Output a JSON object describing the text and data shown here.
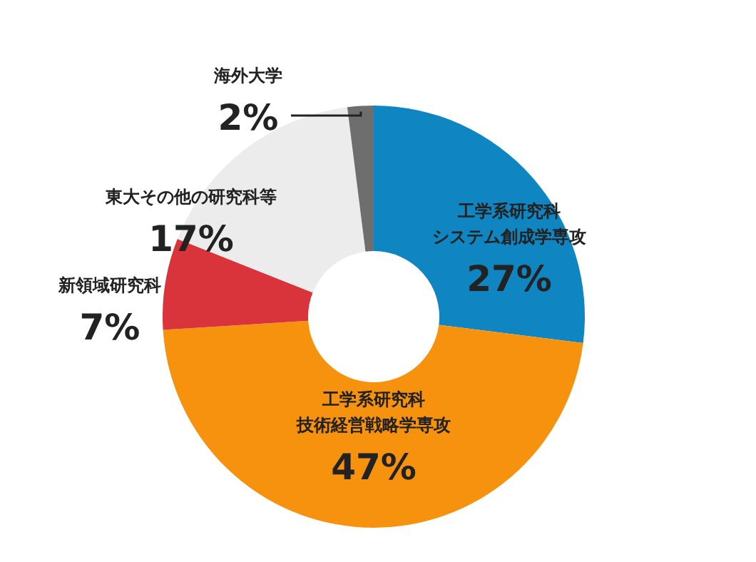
{
  "chart_data": {
    "type": "donut",
    "categories": [
      "工学系研究科システム創成学専攻",
      "工学系研究科技術経営戦略学専攻",
      "新領域研究科",
      "東大その他の研究科等",
      "海外大学"
    ],
    "values": [
      27,
      47,
      7,
      17,
      2
    ],
    "value_labels": [
      "27%",
      "47%",
      "7%",
      "17%",
      "2%"
    ],
    "colors": [
      "#0f86c2",
      "#f7920f",
      "#d9333b",
      "#ececec",
      "#6e6e6e"
    ]
  }
}
